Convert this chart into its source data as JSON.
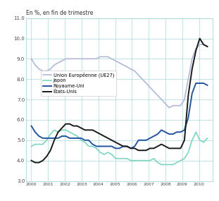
{
  "title": "En %, en fin de trimestre",
  "ylim": [
    3.0,
    11.0
  ],
  "yticks": [
    3.0,
    4.0,
    5.0,
    6.0,
    7.0,
    8.0,
    9.0,
    10.0,
    11.0
  ],
  "xticks": [
    2000,
    2001,
    2002,
    2003,
    2004,
    2005,
    2006,
    2007,
    2008,
    2009,
    2010
  ],
  "xlim": [
    1999.7,
    2010.8
  ],
  "background_color": "#ffffff",
  "grid_color": "#a8d8d8",
  "series": {
    "etats_unis": {
      "label": "États-Unis",
      "color": "#1a1a1a",
      "linewidth": 1.4,
      "data": [
        4.0,
        3.9,
        3.9,
        4.0,
        4.2,
        4.5,
        5.0,
        5.4,
        5.6,
        5.8,
        5.8,
        5.7,
        5.7,
        5.6,
        5.5,
        5.5,
        5.5,
        5.4,
        5.3,
        5.2,
        5.1,
        5.0,
        4.9,
        4.8,
        4.7,
        4.7,
        4.6,
        4.6,
        4.5,
        4.5,
        4.5,
        4.6,
        4.6,
        4.7,
        4.8,
        4.7,
        4.6,
        4.6,
        4.6,
        4.6,
        5.0,
        7.2,
        8.5,
        9.4,
        10.0,
        9.7,
        9.6
      ]
    },
    "japon": {
      "label": "Japon",
      "color": "#7dd4c0",
      "linewidth": 1.2,
      "data": [
        4.7,
        4.8,
        4.8,
        4.8,
        5.0,
        5.3,
        5.5,
        5.4,
        5.5,
        5.5,
        5.4,
        5.3,
        5.2,
        5.0,
        4.9,
        4.7,
        4.7,
        4.6,
        4.4,
        4.3,
        4.4,
        4.3,
        4.1,
        4.1,
        4.1,
        4.1,
        4.0,
        4.0,
        4.0,
        4.0,
        4.0,
        4.0,
        4.1,
        3.9,
        3.8,
        3.8,
        3.8,
        3.8,
        3.9,
        4.0,
        4.1,
        4.4,
        5.0,
        5.4,
        5.0,
        4.9,
        5.1
      ]
    },
    "royaume_uni": {
      "label": "Royaume-Uni",
      "color": "#2255a0",
      "linewidth": 1.4,
      "data": [
        5.7,
        5.4,
        5.2,
        5.1,
        5.1,
        5.1,
        5.1,
        5.1,
        5.2,
        5.2,
        5.1,
        5.1,
        5.1,
        5.1,
        5.0,
        5.0,
        4.8,
        4.7,
        4.7,
        4.7,
        4.7,
        4.7,
        4.6,
        4.6,
        4.7,
        4.7,
        4.6,
        4.7,
        5.0,
        5.0,
        5.0,
        5.1,
        5.2,
        5.3,
        5.5,
        5.4,
        5.3,
        5.3,
        5.4,
        5.4,
        5.5,
        6.1,
        7.3,
        7.8,
        7.8,
        7.8,
        7.7
      ]
    },
    "ue27": {
      "label": "Union Européenne (UE27)",
      "color": "#b0b8d8",
      "linewidth": 1.2,
      "data": [
        9.0,
        8.7,
        8.5,
        8.4,
        8.4,
        8.5,
        8.7,
        8.8,
        8.9,
        9.0,
        9.0,
        9.0,
        9.0,
        9.0,
        9.0,
        9.0,
        9.0,
        9.0,
        9.1,
        9.1,
        9.1,
        9.0,
        8.9,
        8.8,
        8.7,
        8.6,
        8.5,
        8.4,
        8.2,
        8.0,
        7.8,
        7.6,
        7.4,
        7.2,
        7.0,
        6.8,
        6.6,
        6.7,
        6.7,
        6.7,
        7.0,
        8.0,
        9.0,
        9.5,
        9.7,
        9.7,
        9.6
      ]
    }
  }
}
